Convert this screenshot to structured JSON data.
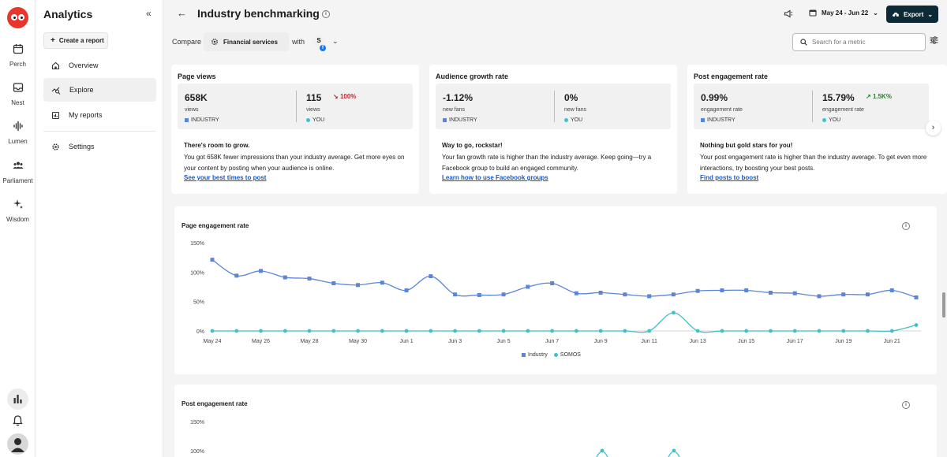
{
  "rail": {
    "items": [
      {
        "label": "Perch",
        "icon": "calendar-icon"
      },
      {
        "label": "Nest",
        "icon": "inbox-icon"
      },
      {
        "label": "Lumen",
        "icon": "audio-wave-icon"
      },
      {
        "label": "Parliament",
        "icon": "people-icon"
      },
      {
        "label": "Wisdom",
        "icon": "sparkle-icon"
      }
    ]
  },
  "sidebar": {
    "title": "Analytics",
    "create_label": "Create a report",
    "items": [
      {
        "label": "Overview",
        "icon": "home-icon"
      },
      {
        "label": "Explore",
        "icon": "explore-icon"
      },
      {
        "label": "My reports",
        "icon": "reports-icon"
      },
      {
        "label": "Settings",
        "icon": "gear-icon"
      }
    ]
  },
  "header": {
    "title": "Industry benchmarking",
    "date_range": "May 24 - Jun 22",
    "export_label": "Export"
  },
  "compare": {
    "label": "Compare",
    "industry": "Financial services",
    "with_label": "with",
    "account_initial": "S",
    "search_placeholder": "Search for a metric"
  },
  "metrics": [
    {
      "title": "Page views",
      "industry_value": "658K",
      "industry_unit": "views",
      "industry_label": "INDUSTRY",
      "you_value": "115",
      "you_unit": "views",
      "you_label": "YOU",
      "delta": "100%",
      "delta_dir": "down",
      "headline": "There's room to grow.",
      "body": "You got 658K fewer impressions than your industry average. Get more eyes on your content by posting when your audience is online.",
      "link": "See your best times to post"
    },
    {
      "title": "Audience growth rate",
      "industry_value": "-1.12%",
      "industry_unit": "new fans",
      "industry_label": "INDUSTRY",
      "you_value": "0%",
      "you_unit": "new fans",
      "you_label": "YOU",
      "delta": "",
      "delta_dir": "",
      "headline": "Way to go, rockstar!",
      "body": "Your fan growth rate is higher than the industry average. Keep going—try a Facebook group to build an engaged community.",
      "link": "Learn how to use Facebook groups"
    },
    {
      "title": "Post engagement rate",
      "industry_value": "0.99%",
      "industry_unit": "engagement rate",
      "industry_label": "INDUSTRY",
      "you_value": "15.79%",
      "you_unit": "engagement rate",
      "you_label": "YOU",
      "delta": "1.5K%",
      "delta_dir": "up",
      "headline": "Nothing but gold stars for you!",
      "body": "Your post engagement rate is higher than the industry average. To get even more interactions, try boosting your best posts.",
      "link": "Find posts to boost"
    }
  ],
  "colors": {
    "industry": "#5b86d6",
    "you": "#3fc1c9",
    "down": "#c62828",
    "up": "#2e7d32",
    "link": "#1a56c8"
  },
  "chart_data": [
    {
      "type": "line",
      "title": "Page engagement rate",
      "x": [
        "May 24",
        "May 25",
        "May 26",
        "May 27",
        "May 28",
        "May 29",
        "May 30",
        "May 31",
        "Jun 1",
        "Jun 2",
        "Jun 3",
        "Jun 4",
        "Jun 5",
        "Jun 6",
        "Jun 7",
        "Jun 8",
        "Jun 9",
        "Jun 10",
        "Jun 11",
        "Jun 12",
        "Jun 13",
        "Jun 14",
        "Jun 15",
        "Jun 16",
        "Jun 17",
        "Jun 18",
        "Jun 19",
        "Jun 20",
        "Jun 21",
        "Jun 22"
      ],
      "tick_labels": [
        "May 24",
        "May 26",
        "May 28",
        "May 30",
        "Jun 1",
        "Jun 3",
        "Jun 5",
        "Jun 7",
        "Jun 9",
        "Jun 11",
        "Jun 13",
        "Jun 15",
        "Jun 17",
        "Jun 19",
        "Jun 21"
      ],
      "y_ticks": [
        "0%",
        "50%",
        "100%",
        "150%"
      ],
      "ylim": [
        0,
        150
      ],
      "series": [
        {
          "name": "Industry",
          "values": [
            121,
            94,
            102,
            91,
            89,
            81,
            78,
            82,
            69,
            93,
            62,
            61,
            62,
            75,
            81,
            64,
            65,
            62,
            59,
            62,
            68,
            69,
            69,
            65,
            64,
            59,
            62,
            62,
            69,
            57
          ]
        },
        {
          "name": "SOMOS",
          "values": [
            0,
            0,
            0,
            0,
            0,
            0,
            0,
            0,
            0,
            0,
            0,
            0,
            0,
            0,
            0,
            0,
            0,
            0,
            0,
            31,
            0,
            0,
            0,
            0,
            0,
            0,
            0,
            0,
            0,
            10
          ]
        }
      ]
    },
    {
      "type": "line",
      "title": "Post engagement rate",
      "y_ticks": [
        "100%",
        "150%"
      ]
    }
  ]
}
